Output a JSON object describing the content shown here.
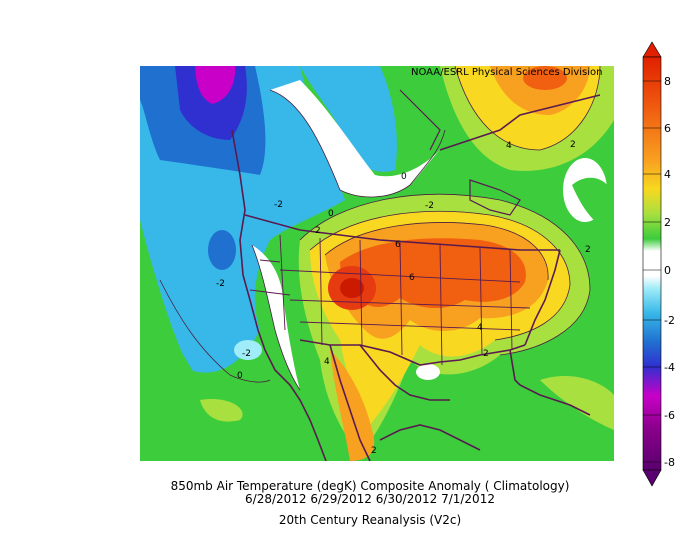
{
  "credit": "NOAA/ESRL Physical Sciences Division",
  "caption": {
    "line1": "850mb Air Temperature (degK) Composite Anomaly ( Climatology)",
    "line2": "6/28/2012 6/29/2012 6/30/2012 7/1/2012",
    "line3": "20th Century Reanalysis (V2c)"
  },
  "colorbar": {
    "labels": [
      "8",
      "6",
      "4",
      "2",
      "0",
      "-2",
      "-4",
      "-6",
      "-8"
    ],
    "colors": [
      "#5a0070",
      "#8a008a",
      "#c800c8",
      "#3030d0",
      "#2070d0",
      "#38b8e8",
      "#a0ecf8",
      "#ffffff",
      "#ffffff",
      "#3ccc3c",
      "#a8e040",
      "#f8d820",
      "#f8a020",
      "#f06010",
      "#e03000"
    ]
  },
  "contour_labels": [
    "4",
    "2",
    "-2",
    "0",
    "2",
    "-2",
    "-2",
    "-2",
    "0",
    "0",
    "6",
    "6",
    "4",
    "4",
    "2",
    "2",
    "2",
    "4",
    "2"
  ]
}
